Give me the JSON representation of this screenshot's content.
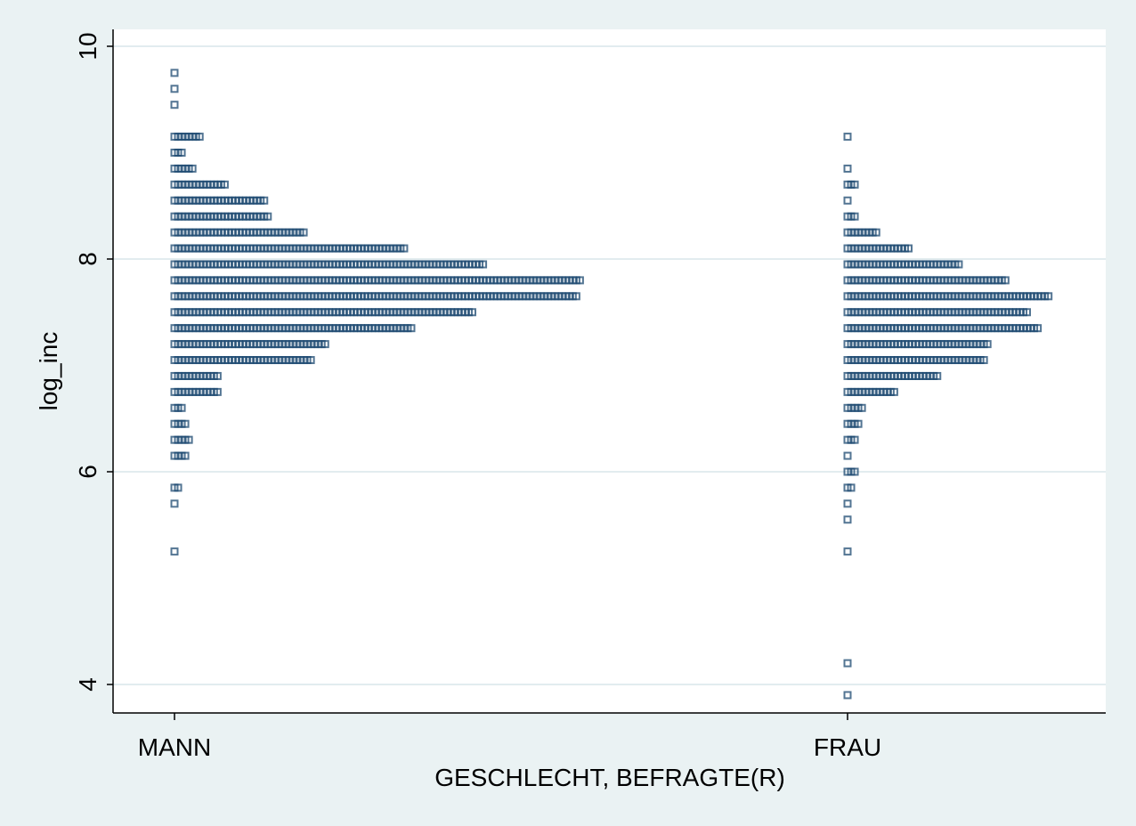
{
  "chart_data": {
    "type": "scatter",
    "style": "one-way dot plot (stacked horizontal jitter per category)",
    "title": "",
    "xlabel": "GESCHLECHT, BEFRAGTE(R)",
    "ylabel": "log_inc",
    "categories": [
      "MANN",
      "FRAU"
    ],
    "ylim": [
      3.8,
      10.2
    ],
    "yticks": [
      4,
      6,
      8,
      10
    ],
    "grid": true,
    "marker": "hollow-square",
    "colors": {
      "background": "#eaf2f3",
      "plot_background": "#ffffff",
      "grid": "#e2ecef",
      "marker": "#1a476f"
    },
    "bin_width": 0.15,
    "groups": [
      {
        "name": "MANN",
        "bins": [
          {
            "y": 5.25,
            "count": 1
          },
          {
            "y": 5.7,
            "count": 1
          },
          {
            "y": 5.85,
            "count": 2
          },
          {
            "y": 6.15,
            "count": 4
          },
          {
            "y": 6.3,
            "count": 5
          },
          {
            "y": 6.45,
            "count": 4
          },
          {
            "y": 6.6,
            "count": 3
          },
          {
            "y": 6.75,
            "count": 13
          },
          {
            "y": 6.9,
            "count": 13
          },
          {
            "y": 7.05,
            "count": 39
          },
          {
            "y": 7.2,
            "count": 43
          },
          {
            "y": 7.35,
            "count": 67
          },
          {
            "y": 7.5,
            "count": 84
          },
          {
            "y": 7.65,
            "count": 113
          },
          {
            "y": 7.8,
            "count": 114
          },
          {
            "y": 7.95,
            "count": 87
          },
          {
            "y": 8.1,
            "count": 65
          },
          {
            "y": 8.25,
            "count": 37
          },
          {
            "y": 8.4,
            "count": 27
          },
          {
            "y": 8.55,
            "count": 26
          },
          {
            "y": 8.7,
            "count": 15
          },
          {
            "y": 8.85,
            "count": 6
          },
          {
            "y": 9.0,
            "count": 3
          },
          {
            "y": 9.15,
            "count": 8
          },
          {
            "y": 9.45,
            "count": 1
          },
          {
            "y": 9.6,
            "count": 1
          },
          {
            "y": 9.75,
            "count": 1
          }
        ]
      },
      {
        "name": "FRAU",
        "bins": [
          {
            "y": 3.9,
            "count": 1
          },
          {
            "y": 4.2,
            "count": 1
          },
          {
            "y": 5.25,
            "count": 1
          },
          {
            "y": 5.55,
            "count": 1
          },
          {
            "y": 5.7,
            "count": 1
          },
          {
            "y": 5.85,
            "count": 2
          },
          {
            "y": 6.0,
            "count": 3
          },
          {
            "y": 6.15,
            "count": 1
          },
          {
            "y": 6.3,
            "count": 3
          },
          {
            "y": 6.45,
            "count": 4
          },
          {
            "y": 6.6,
            "count": 5
          },
          {
            "y": 6.75,
            "count": 14
          },
          {
            "y": 6.9,
            "count": 26
          },
          {
            "y": 7.05,
            "count": 39
          },
          {
            "y": 7.2,
            "count": 40
          },
          {
            "y": 7.35,
            "count": 54
          },
          {
            "y": 7.5,
            "count": 51
          },
          {
            "y": 7.65,
            "count": 57
          },
          {
            "y": 7.8,
            "count": 45
          },
          {
            "y": 7.95,
            "count": 32
          },
          {
            "y": 8.1,
            "count": 18
          },
          {
            "y": 8.25,
            "count": 9
          },
          {
            "y": 8.4,
            "count": 3
          },
          {
            "y": 8.55,
            "count": 1
          },
          {
            "y": 8.7,
            "count": 3
          },
          {
            "y": 8.85,
            "count": 1
          },
          {
            "y": 9.15,
            "count": 1
          }
        ]
      }
    ]
  }
}
